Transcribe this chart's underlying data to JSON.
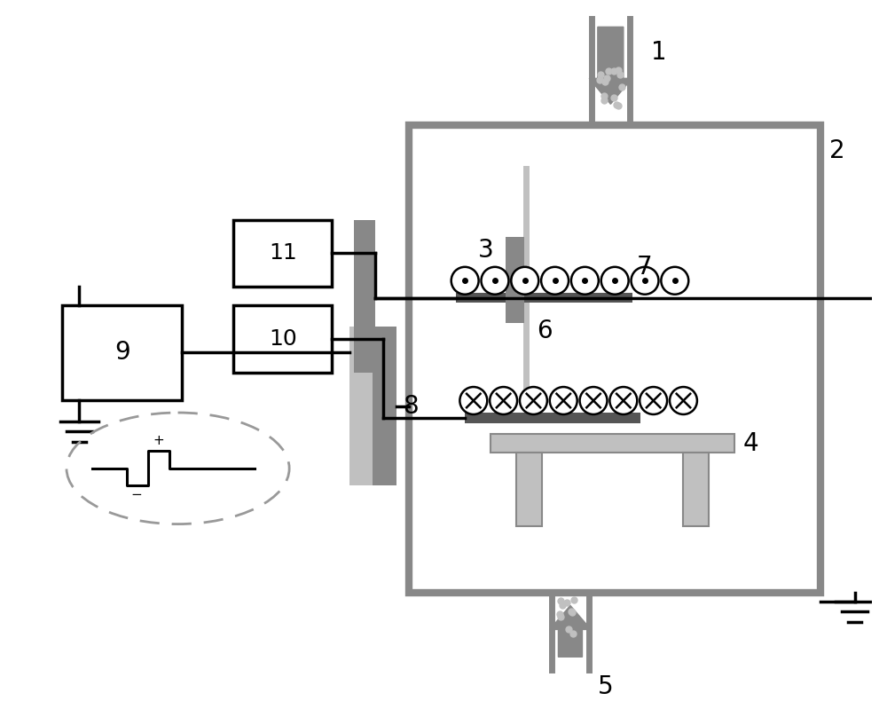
{
  "bg_color": "#ffffff",
  "gray": "#888888",
  "dark_gray": "#555555",
  "light_gray": "#c0c0c0",
  "black": "#000000",
  "figsize": [
    10.0,
    7.9
  ],
  "dpi": 100
}
